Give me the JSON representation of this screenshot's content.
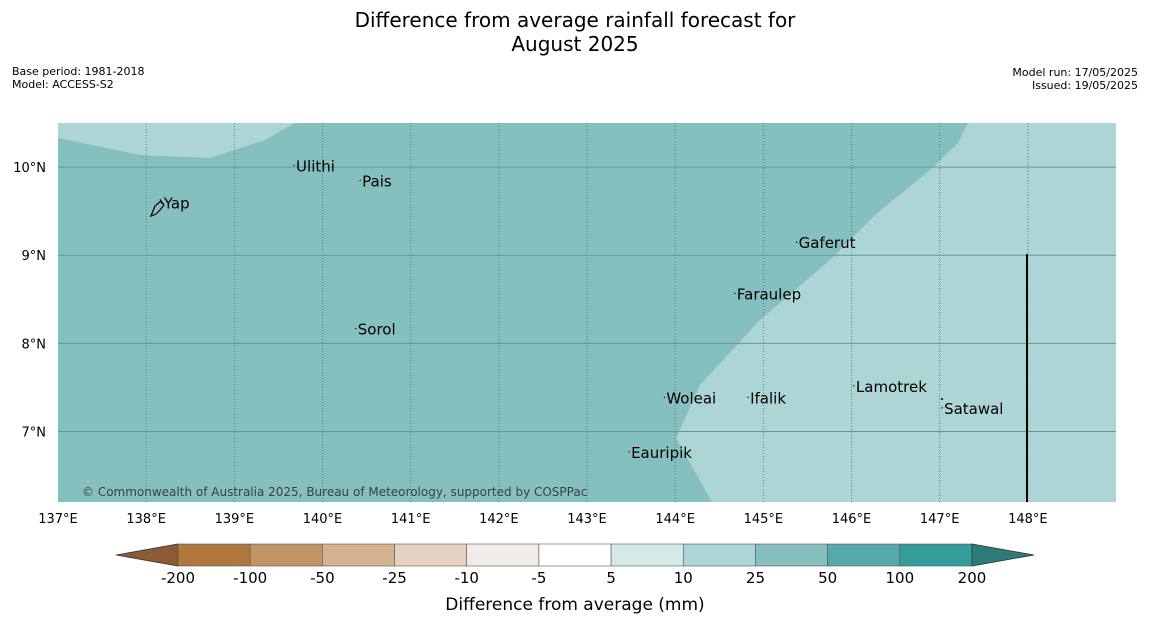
{
  "title": {
    "line1": "Difference from average rainfall forecast for",
    "line2": "August 2025"
  },
  "meta_left": {
    "base_period": "Base period: 1981-2018",
    "model": "Model: ACCESS-S2"
  },
  "meta_right": {
    "model_run": "Model run: 17/05/2025",
    "issued": "Issued: 19/05/2025"
  },
  "map": {
    "lon_range": [
      137,
      149
    ],
    "lat_range": [
      6.2,
      10.5
    ],
    "lon_ticks": [
      {
        "value": 137,
        "label": "137°E"
      },
      {
        "value": 138,
        "label": "138°E"
      },
      {
        "value": 139,
        "label": "139°E"
      },
      {
        "value": 140,
        "label": "140°E"
      },
      {
        "value": 141,
        "label": "141°E"
      },
      {
        "value": 142,
        "label": "142°E"
      },
      {
        "value": 143,
        "label": "143°E"
      },
      {
        "value": 144,
        "label": "144°E"
      },
      {
        "value": 145,
        "label": "145°E"
      },
      {
        "value": 146,
        "label": "146°E"
      },
      {
        "value": 147,
        "label": "147°E"
      },
      {
        "value": 148,
        "label": "148°E"
      }
    ],
    "lat_ticks": [
      {
        "value": 10,
        "label": "10°N"
      },
      {
        "value": 9,
        "label": "9°N"
      },
      {
        "value": 8,
        "label": "8°N"
      },
      {
        "value": 7,
        "label": "7°N"
      }
    ],
    "places": [
      {
        "name": "Yap",
        "lon": 138.2,
        "lat": 9.53
      },
      {
        "name": "Ulithi",
        "lon": 139.7,
        "lat": 9.95
      },
      {
        "name": "Pais",
        "lon": 140.45,
        "lat": 9.78
      },
      {
        "name": "Gaferut",
        "lon": 145.4,
        "lat": 9.08
      },
      {
        "name": "Faraulep",
        "lon": 144.7,
        "lat": 8.5
      },
      {
        "name": "Sorol",
        "lon": 140.4,
        "lat": 8.1
      },
      {
        "name": "Lamotrek",
        "lon": 146.05,
        "lat": 7.45
      },
      {
        "name": "Woleai",
        "lon": 143.9,
        "lat": 7.32
      },
      {
        "name": "Ifalik",
        "lon": 144.85,
        "lat": 7.32
      },
      {
        "name": "Satawal",
        "lon": 147.05,
        "lat": 7.2
      },
      {
        "name": "Eauripik",
        "lon": 143.5,
        "lat": 6.7
      }
    ],
    "credit": "© Commonwealth of Australia 2025, Bureau of Meteorology, supported by COSPPac"
  },
  "colors": {
    "band_10_25": "#add5d5",
    "band_25_50": "#86bfbf",
    "grid": "#5e9a9a"
  },
  "legend": {
    "labels": [
      "-200",
      "-100",
      "-50",
      "-25",
      "-10",
      "-5",
      "5",
      "10",
      "25",
      "50",
      "100",
      "200"
    ],
    "colors": [
      "#8c5b34",
      "#b0773f",
      "#c29468",
      "#d6b290",
      "#e5d1c0",
      "#f0ede8",
      "#ffffff",
      "#d5eae8",
      "#add5d5",
      "#86bfbf",
      "#56a9a9",
      "#359b9b",
      "#2b7b79"
    ],
    "label": "Difference from average (mm)"
  }
}
